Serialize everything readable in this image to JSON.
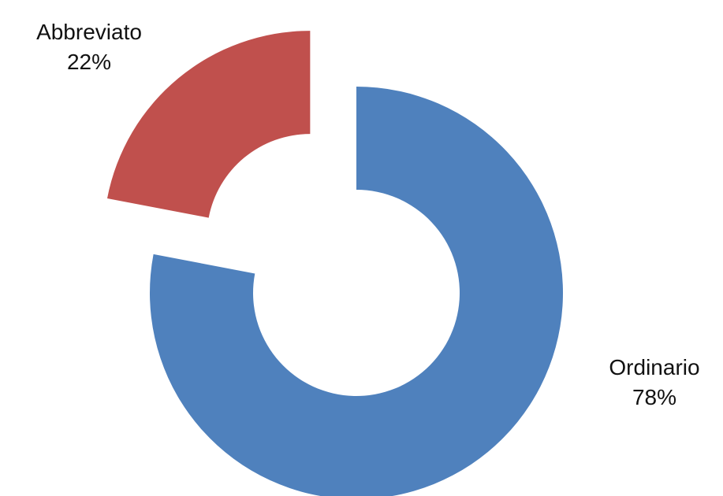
{
  "chart_data": {
    "type": "pie",
    "variant": "doughnut",
    "title": "",
    "legend": "none",
    "slices": [
      {
        "name": "Ordinario",
        "value": 78,
        "percent_label": "78%",
        "color": "#4F81BD",
        "exploded": false
      },
      {
        "name": "Abbreviato",
        "value": 22,
        "percent_label": "22%",
        "color": "#C0504D",
        "exploded": true
      }
    ]
  }
}
